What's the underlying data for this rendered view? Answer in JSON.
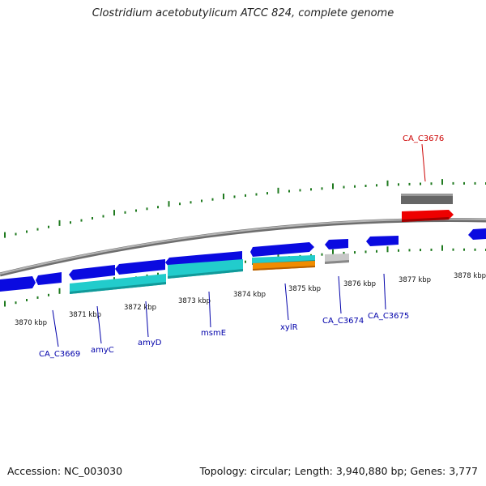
{
  "title": "Clostridium acetobutylicum ATCC 824, complete genome",
  "footer": {
    "accession": "Accession: NC_003030",
    "summary": "Topology: circular; Length: 3,940,880 bp; Genes: 3,777"
  },
  "colors": {
    "backbone": "#8c8c8c",
    "tick": "#1f7a1f",
    "gene_blue": "#0a0ae0",
    "gene_cyan": "#22cccc",
    "gene_orange": "#f08c00",
    "gene_red": "#ee0000",
    "gene_gray_dark": "#666666",
    "gene_gray_light": "#bbbbbb",
    "label_blue": "#0000aa",
    "label_red": "#cc0000"
  },
  "ruler": {
    "unit": "kbp",
    "labels": [
      "3870 kbp",
      "3871 kbp",
      "3872 kbp",
      "3873 kbp",
      "3874 kbp",
      "3875 kbp",
      "3876 kbp",
      "3877 kbp",
      "3878 kbp"
    ]
  },
  "gene_labels": [
    {
      "text": "CA_C3669",
      "color": "blue"
    },
    {
      "text": "amyC",
      "color": "blue"
    },
    {
      "text": "amyD",
      "color": "blue"
    },
    {
      "text": "msmE",
      "color": "blue"
    },
    {
      "text": "xylR",
      "color": "blue"
    },
    {
      "text": "CA_C3674",
      "color": "blue"
    },
    {
      "text": "CA_C3675",
      "color": "blue"
    },
    {
      "text": "CA_C3676",
      "color": "red"
    }
  ]
}
